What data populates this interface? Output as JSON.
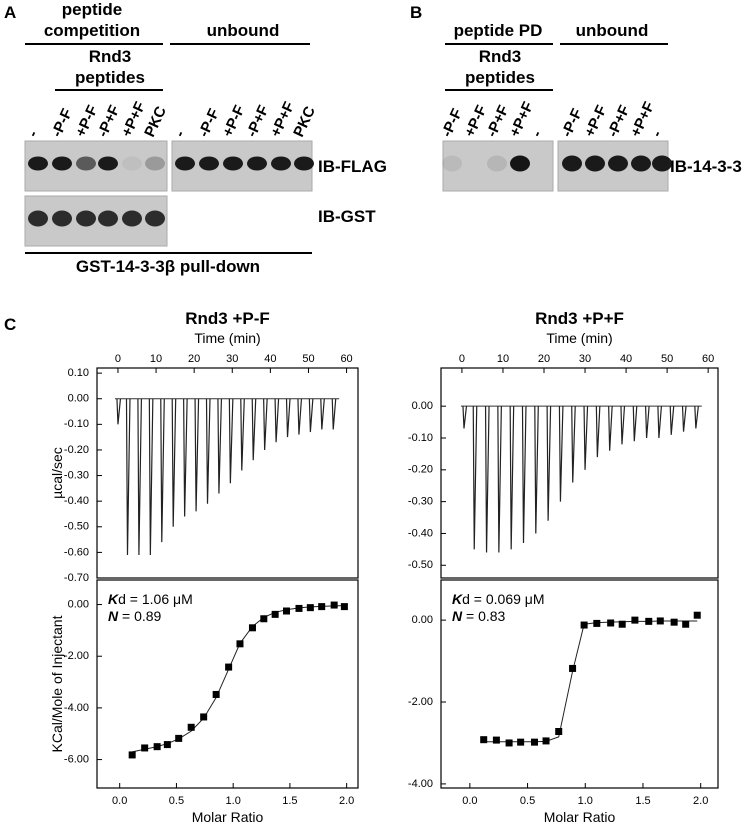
{
  "panel_a": {
    "label": "A",
    "competition_header": [
      "peptide",
      "competition"
    ],
    "peptides_header": [
      "Rnd3",
      "peptides"
    ],
    "unbound_header": "unbound",
    "competition_lanes": [
      "-",
      "-P-F",
      "+P-F",
      "-P+F",
      "+P+F",
      "PKC"
    ],
    "unbound_lanes": [
      "-",
      "-P-F",
      "+P-F",
      "-P+F",
      "+P+F",
      "PKC"
    ],
    "blots": [
      "IB-FLAG",
      "IB-GST"
    ],
    "footer": "GST-14-3-3β pull-down"
  },
  "panel_b": {
    "label": "B",
    "pd_header": "peptide PD",
    "peptides_header": [
      "Rnd3",
      "peptides"
    ],
    "unbound_header": "unbound",
    "pd_lanes": [
      "-P-F",
      "+P-F",
      "-P+F",
      "+P+F",
      "-"
    ],
    "unbound_lanes": [
      "-P-F",
      "+P-F",
      "-P+F",
      "+P+F",
      "-"
    ],
    "blot": "IB-14-3-3"
  },
  "panel_c": {
    "label": "C"
  },
  "chart_data": [
    {
      "type": "itc",
      "title": "Rnd3 +P-F",
      "raw": {
        "x_label": "Time (min)",
        "y_label": "µcal/sec",
        "xlim": [
          -5.5,
          63
        ],
        "xticks": [
          0,
          10,
          20,
          30,
          40,
          50,
          60
        ],
        "ylim": [
          -0.7,
          0.12
        ],
        "yticks": [
          {
            "value": 0.1,
            "label": "0.10"
          },
          {
            "value": 0,
            "label": "0.00"
          },
          {
            "value": -0.1,
            "label": "-0.10"
          },
          {
            "value": -0.2,
            "label": "-0.20"
          },
          {
            "value": -0.3,
            "label": "-0.30"
          },
          {
            "value": -0.4,
            "label": "-0.40"
          },
          {
            "value": -0.5,
            "label": "-0.50"
          },
          {
            "value": -0.6,
            "label": "-0.60"
          },
          {
            "value": -0.7,
            "label": "-0.70"
          }
        ],
        "injection_times": [
          0,
          2.5,
          5.5,
          8.5,
          11.5,
          14.5,
          17.5,
          20.5,
          23.5,
          26.5,
          29.5,
          32.5,
          35.5,
          38.5,
          41.5,
          44.5,
          47.5,
          50.5,
          53.5,
          56.5
        ],
        "peaks": [
          -0.1,
          -0.61,
          -0.61,
          -0.61,
          -0.56,
          -0.5,
          -0.46,
          -0.44,
          -0.41,
          -0.37,
          -0.33,
          -0.28,
          -0.24,
          -0.2,
          -0.17,
          -0.15,
          -0.14,
          -0.13,
          -0.12,
          -0.12
        ]
      },
      "isotherm": {
        "x_label": "Molar Ratio",
        "y_label": "KCal/Mole of Injectant",
        "xlim": [
          -0.2,
          2.1
        ],
        "xticks": [
          {
            "value": 0,
            "label": "0.0"
          },
          {
            "value": 0.5,
            "label": "0.5"
          },
          {
            "value": 1,
            "label": "1.0"
          },
          {
            "value": 1.5,
            "label": "1.5"
          },
          {
            "value": 2,
            "label": "2.0"
          }
        ],
        "ylim": [
          -7.1,
          0.95
        ],
        "yticks": [
          {
            "value": 0,
            "label": "0.00"
          },
          {
            "value": -2,
            "label": "-2.00"
          },
          {
            "value": -4,
            "label": "-4.00"
          },
          {
            "value": -6,
            "label": "-6.00"
          }
        ],
        "x": [
          0.11,
          0.22,
          0.33,
          0.42,
          0.52,
          0.63,
          0.74,
          0.85,
          0.96,
          1.06,
          1.17,
          1.27,
          1.37,
          1.47,
          1.58,
          1.68,
          1.78,
          1.89,
          1.98
        ],
        "values": [
          -5.82,
          -5.55,
          -5.5,
          -5.42,
          -5.18,
          -4.75,
          -4.35,
          -3.48,
          -2.42,
          -1.52,
          -0.9,
          -0.55,
          -0.38,
          -0.25,
          -0.15,
          -0.12,
          -0.08,
          -0.02,
          -0.08
        ],
        "fit": [
          -5.7,
          -5.6,
          -5.5,
          -5.38,
          -5.2,
          -4.9,
          -4.4,
          -3.6,
          -2.5,
          -1.5,
          -0.85,
          -0.5,
          -0.3,
          -0.2,
          -0.13,
          -0.09,
          -0.07,
          -0.05,
          -0.04
        ],
        "annotations": [
          {
            "label": "K",
            "text": "d = 1.06 μM"
          },
          {
            "label": "N",
            "text": " = 0.89"
          }
        ]
      }
    },
    {
      "type": "itc",
      "title": "Rnd3 +P+F",
      "raw": {
        "x_label": "Time (min)",
        "xlim": [
          -5.1,
          62.4
        ],
        "xticks": [
          0,
          10,
          20,
          30,
          40,
          50,
          60
        ],
        "ylim": [
          -0.54,
          0.12
        ],
        "yticks": [
          {
            "value": 0,
            "label": "0.00"
          },
          {
            "value": -0.1,
            "label": "-0.10"
          },
          {
            "value": -0.2,
            "label": "-0.20"
          },
          {
            "value": -0.3,
            "label": "-0.30"
          },
          {
            "value": -0.4,
            "label": "-0.40"
          },
          {
            "value": -0.5,
            "label": "-0.50"
          }
        ],
        "injection_times": [
          0.5,
          3,
          6,
          9,
          12,
          15,
          18,
          21,
          24,
          27,
          30,
          33,
          36,
          39,
          42,
          45,
          48,
          51,
          54,
          57
        ],
        "peaks": [
          -0.07,
          -0.45,
          -0.46,
          -0.46,
          -0.45,
          -0.43,
          -0.4,
          -0.36,
          -0.3,
          -0.24,
          -0.2,
          -0.16,
          -0.14,
          -0.12,
          -0.11,
          -0.1,
          -0.1,
          -0.09,
          -0.08,
          -0.07
        ]
      },
      "isotherm": {
        "x_label": "Molar Ratio",
        "xlim": [
          -0.25,
          2.15
        ],
        "xticks": [
          {
            "value": 0,
            "label": "0.0"
          },
          {
            "value": 0.5,
            "label": "0.5"
          },
          {
            "value": 1,
            "label": "1.0"
          },
          {
            "value": 1.5,
            "label": "1.5"
          },
          {
            "value": 2,
            "label": "2.0"
          }
        ],
        "ylim": [
          -4.1,
          0.98
        ],
        "yticks": [
          {
            "value": 0,
            "label": "0.00"
          },
          {
            "value": -2,
            "label": "-2.00"
          },
          {
            "value": -4,
            "label": "-4.00"
          }
        ],
        "x": [
          0.12,
          0.23,
          0.34,
          0.44,
          0.56,
          0.66,
          0.77,
          0.89,
          0.99,
          1.1,
          1.22,
          1.32,
          1.43,
          1.55,
          1.65,
          1.77,
          1.87,
          1.97
        ],
        "values": [
          -2.92,
          -2.93,
          -3.0,
          -2.98,
          -2.98,
          -2.95,
          -2.72,
          -1.18,
          -0.12,
          -0.08,
          -0.07,
          -0.1,
          0.0,
          -0.03,
          -0.02,
          -0.05,
          -0.1,
          0.12
        ],
        "fit": [
          -2.97,
          -2.97,
          -2.97,
          -2.97,
          -2.97,
          -2.96,
          -2.85,
          -1.25,
          -0.1,
          -0.06,
          -0.05,
          -0.04,
          -0.03,
          -0.03,
          -0.02,
          -0.02,
          -0.02,
          -0.02
        ],
        "annotations": [
          {
            "label": "K",
            "text": "d = 0.069 μM"
          },
          {
            "label": "N",
            "text": " = 0.83"
          }
        ]
      }
    }
  ]
}
